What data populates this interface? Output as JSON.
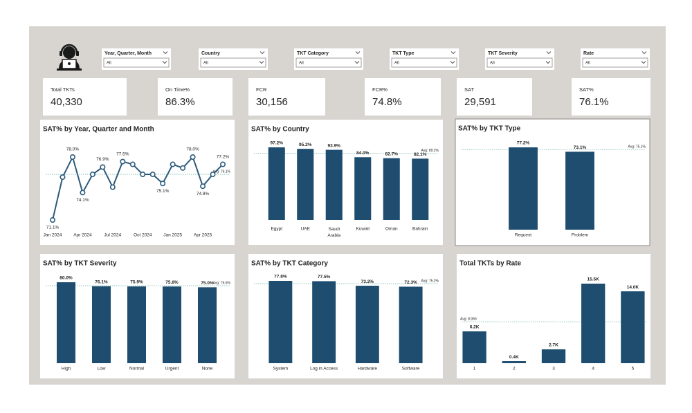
{
  "filters": [
    {
      "label": "Year, Quarter, Month",
      "value": "All"
    },
    {
      "label": "Country",
      "value": "All"
    },
    {
      "label": "TKT Category",
      "value": "All"
    },
    {
      "label": "TKT Type",
      "value": "All"
    },
    {
      "label": "TKT Severity",
      "value": "All"
    },
    {
      "label": "Rate",
      "value": "All"
    }
  ],
  "kpis": [
    {
      "label": "Total TKTs",
      "value": "40,330"
    },
    {
      "label": "On Time%",
      "value": "86.3%"
    },
    {
      "label": "FCR",
      "value": "30,156"
    },
    {
      "label": "FCR%",
      "value": "74.8%"
    },
    {
      "label": "SAT",
      "value": "29,591"
    },
    {
      "label": "SAT%",
      "value": "76.1%"
    }
  ],
  "chart_data": [
    {
      "type": "line",
      "title": "SAT% by Year, Quarter and Month",
      "color": "#2c5a7c",
      "categories": [
        "Jan 2024",
        null,
        null,
        "Apr 2024",
        null,
        null,
        "Jul 2024",
        null,
        null,
        "Oct 2024",
        null,
        null,
        "Jan 2025",
        null,
        null,
        "Apr 2025",
        null,
        null
      ],
      "values": [
        71.1,
        75.8,
        78.0,
        74.1,
        76.1,
        76.9,
        74.7,
        77.5,
        77.2,
        76.1,
        76.1,
        75.1,
        77.2,
        76.8,
        78.0,
        74.8,
        76.1,
        77.2
      ],
      "value_labels": [
        "71.1%",
        null,
        "78.0%",
        "74.1%",
        null,
        "76.9%",
        null,
        "77.5%",
        null,
        null,
        null,
        "75.1%",
        null,
        null,
        "78.0%",
        "74.8%",
        null,
        "77.2%"
      ],
      "avg": {
        "value": 76.1,
        "label": "Avg: 76.1%"
      }
    },
    {
      "type": "bar",
      "title": "SAT% by Country",
      "color": "#1e4d70",
      "categories": [
        "Egypt",
        "UAE",
        "Saudi Arabia",
        "Kuwait",
        "Oman",
        "Bahrain"
      ],
      "values": [
        97.2,
        95.2,
        93.9,
        84.0,
        82.7,
        82.1
      ],
      "value_labels": [
        "97.2%",
        "95.2%",
        "93.9%",
        "84.0%",
        "82.7%",
        "82.1%"
      ],
      "avg": {
        "value": 89.2,
        "label": "Avg: 89.2%"
      }
    },
    {
      "type": "bar",
      "title": "SAT% by TKT Type",
      "color": "#1e4d70",
      "categories": [
        "Request",
        "Problem"
      ],
      "values": [
        77.2,
        73.1
      ],
      "value_labels": [
        "77.2%",
        "73.1%"
      ],
      "avg": {
        "value": 75.1,
        "label": "Avg: 75.1%"
      }
    },
    {
      "type": "bar",
      "title": "SAT% by TKT Severity",
      "color": "#1e4d70",
      "categories": [
        "High",
        "Low",
        "Normal",
        "Urgent",
        "None"
      ],
      "values": [
        80.0,
        76.1,
        75.9,
        75.8,
        75.0
      ],
      "value_labels": [
        "80.0%",
        "76.1%",
        "75.9%",
        "75.8%",
        "75.0%"
      ],
      "avg": {
        "value": 76.6,
        "label": "Avg: 76.6%"
      }
    },
    {
      "type": "bar",
      "title": "SAT% by TKT Category",
      "color": "#1e4d70",
      "categories": [
        "System",
        "Log in Access",
        "Hardware",
        "Software"
      ],
      "values": [
        77.8,
        77.5,
        73.2,
        72.3
      ],
      "value_labels": [
        "77.8%",
        "77.5%",
        "73.2%",
        "72.3%"
      ],
      "avg": {
        "value": 75.2,
        "label": "Avg: 75.2%"
      }
    },
    {
      "type": "bar",
      "title": "Total TKTs by Rate",
      "color": "#1e4d70",
      "categories": [
        "1",
        "2",
        "3",
        "4",
        "5"
      ],
      "values": [
        6200,
        400,
        2700,
        15500,
        14000
      ],
      "value_labels": [
        "6.2K",
        "0.4K",
        "2.7K",
        "15.5K",
        "14.0K"
      ],
      "avg": {
        "value": 8066,
        "label": "Avg: 8,066"
      }
    }
  ]
}
